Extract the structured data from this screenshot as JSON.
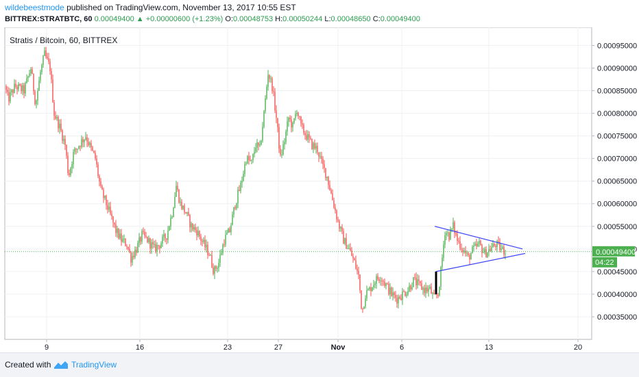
{
  "header": {
    "author": "wildebeestmode",
    "published": "published on TradingView.com, November 13, 2017 10:55 EST"
  },
  "ohlc": {
    "symbol": "BITTREX:STRATBTC, 60",
    "last": "0.00049400",
    "arrow": "▲",
    "change": "+0.00000600 (+1.23%)",
    "o_label": "O:",
    "o": "0.00048753",
    "h_label": "H:",
    "h": "0.00050244",
    "l_label": "L:",
    "l": "0.00048650",
    "c_label": "C:",
    "c": "0.00049400"
  },
  "footer": {
    "created_with": "Created with",
    "brand": "TradingView"
  },
  "colors": {
    "up": "#4caf50",
    "down": "#ef5350",
    "line": "#3a43f5",
    "price_tag": "#4caf50",
    "grid": "#eef0f4"
  },
  "chart_data": {
    "type": "candlestick",
    "title": "Stratis / Bitcoin, 60, BITTREX",
    "x_ticks": [
      "9",
      "16",
      "23",
      "27",
      "Nov",
      "6",
      "13",
      "20"
    ],
    "y_ticks": [
      "0.00095000",
      "0.00090000",
      "0.00085000",
      "0.00080000",
      "0.00075000",
      "0.00070000",
      "0.00065000",
      "0.00060000",
      "0.00055000",
      "0.00050000",
      "0.00045000",
      "0.00040000",
      "0.00035000"
    ],
    "ylim": [
      0.0003,
      0.00099
    ],
    "last_price_label": "0.00049400",
    "countdown_label": "04:22",
    "grid": true,
    "price_path": [
      [
        0,
        0.00086
      ],
      [
        5,
        0.00083
      ],
      [
        15,
        0.00086
      ],
      [
        28,
        0.00085
      ],
      [
        38,
        0.0009
      ],
      [
        45,
        0.00082
      ],
      [
        52,
        0.00089
      ],
      [
        58,
        0.00093
      ],
      [
        66,
        0.0009
      ],
      [
        72,
        0.0008
      ],
      [
        80,
        0.00077
      ],
      [
        88,
        0.00073
      ],
      [
        93,
        0.00066
      ],
      [
        100,
        0.00071
      ],
      [
        108,
        0.00073
      ],
      [
        118,
        0.00075
      ],
      [
        126,
        0.00072
      ],
      [
        132,
        0.0007
      ],
      [
        140,
        0.00063
      ],
      [
        148,
        0.0006
      ],
      [
        155,
        0.00057
      ],
      [
        162,
        0.00054
      ],
      [
        170,
        0.00052
      ],
      [
        178,
        0.00051
      ],
      [
        184,
        0.00048
      ],
      [
        192,
        0.0005
      ],
      [
        200,
        0.00053
      ],
      [
        208,
        0.00052
      ],
      [
        218,
        0.0005
      ],
      [
        226,
        0.00051
      ],
      [
        236,
        0.00053
      ],
      [
        244,
        0.00058
      ],
      [
        250,
        0.00064
      ],
      [
        256,
        0.0006
      ],
      [
        264,
        0.00058
      ],
      [
        272,
        0.00055
      ],
      [
        280,
        0.00054
      ],
      [
        290,
        0.00051
      ],
      [
        298,
        0.00049
      ],
      [
        305,
        0.00045
      ],
      [
        312,
        0.00047
      ],
      [
        320,
        0.00052
      ],
      [
        328,
        0.00054
      ],
      [
        336,
        0.0006
      ],
      [
        344,
        0.00064
      ],
      [
        352,
        0.0007
      ],
      [
        360,
        0.00069
      ],
      [
        366,
        0.00073
      ],
      [
        372,
        0.00072
      ],
      [
        378,
        0.0008
      ],
      [
        384,
        0.00089
      ],
      [
        390,
        0.00086
      ],
      [
        396,
        0.00079
      ],
      [
        402,
        0.0007
      ],
      [
        408,
        0.00074
      ],
      [
        414,
        0.00079
      ],
      [
        420,
        0.00077
      ],
      [
        426,
        0.00081
      ],
      [
        432,
        0.00077
      ],
      [
        440,
        0.00075
      ],
      [
        448,
        0.00073
      ],
      [
        456,
        0.00072
      ],
      [
        462,
        0.00069
      ],
      [
        470,
        0.00066
      ],
      [
        478,
        0.00061
      ],
      [
        486,
        0.00056
      ],
      [
        494,
        0.00052
      ],
      [
        502,
        0.0005
      ],
      [
        510,
        0.00047
      ],
      [
        516,
        0.00044
      ],
      [
        521,
        0.00036
      ],
      [
        526,
        0.0004
      ],
      [
        532,
        0.00041
      ],
      [
        540,
        0.00043
      ],
      [
        548,
        0.00044
      ],
      [
        556,
        0.00042
      ],
      [
        564,
        0.0004
      ],
      [
        572,
        0.00039
      ],
      [
        580,
        0.0004
      ],
      [
        588,
        0.00041
      ],
      [
        596,
        0.00043
      ],
      [
        604,
        0.00042
      ],
      [
        612,
        0.00041
      ],
      [
        620,
        0.00041
      ],
      [
        626,
        0.00039
      ],
      [
        632,
        0.0004
      ],
      [
        636,
        0.00045
      ],
      [
        642,
        0.00054
      ],
      [
        648,
        0.00053
      ],
      [
        654,
        0.00055
      ],
      [
        660,
        0.00052
      ],
      [
        668,
        0.0005
      ],
      [
        676,
        0.00048
      ],
      [
        684,
        0.0005
      ],
      [
        692,
        0.00051
      ],
      [
        700,
        0.00049
      ],
      [
        708,
        0.0005
      ],
      [
        716,
        0.00051
      ],
      [
        724,
        0.0005
      ],
      [
        730,
        0.000494
      ]
    ],
    "triangle": {
      "upper": [
        [
          634,
          0.00055
        ],
        [
          762,
          0.0005
        ]
      ],
      "lower": [
        [
          636,
          0.00045
        ],
        [
          766,
          0.00049
        ]
      ],
      "impulse": [
        [
          636,
          0.0004
        ],
        [
          636,
          0.00045
        ]
      ]
    }
  }
}
